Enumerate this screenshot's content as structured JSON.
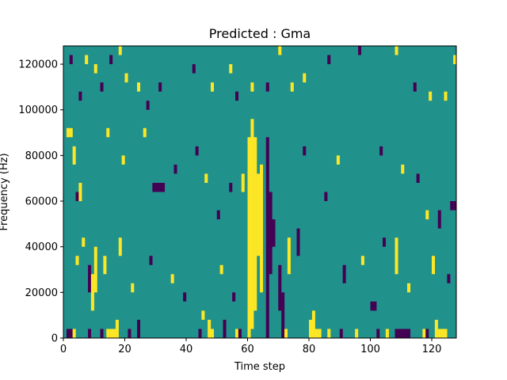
{
  "chart_data": {
    "type": "heatmap",
    "title": "Predicted : Gma",
    "xlabel": "Time step",
    "ylabel": "Frequency (Hz)",
    "xlim": [
      0,
      128
    ],
    "ylim": [
      0,
      128000
    ],
    "x_ticks": [
      0,
      20,
      40,
      60,
      80,
      100,
      120
    ],
    "x_tick_labels": [
      "0",
      "20",
      "40",
      "60",
      "80",
      "100",
      "120"
    ],
    "y_ticks": [
      0,
      20000,
      40000,
      60000,
      80000,
      100000,
      120000
    ],
    "y_tick_labels": [
      "0",
      "20000",
      "40000",
      "60000",
      "80000",
      "100000",
      "120000"
    ],
    "grid": false,
    "legend": "none",
    "colormap": "viridis",
    "value_levels": [
      -1,
      0,
      1
    ],
    "colors": {
      "low": "#440154",
      "mid": "#21918c",
      "high": "#fde725"
    },
    "background_value": 0,
    "band_height_hz": 4000,
    "cells": [
      {
        "x": 60,
        "y0": 0,
        "y1": 88000,
        "value": 1
      },
      {
        "x": 61,
        "y0": 4000,
        "y1": 96000,
        "value": 1
      },
      {
        "x": 62,
        "y0": 12000,
        "y1": 88000,
        "value": 1
      },
      {
        "x": 63,
        "y0": 36000,
        "y1": 72000,
        "value": 1
      },
      {
        "x": 64,
        "y0": 20000,
        "y1": 76000,
        "value": 1
      },
      {
        "x": 66,
        "y0": 0,
        "y1": 88000,
        "value": -1
      },
      {
        "x": 67,
        "y0": 28000,
        "y1": 64000,
        "value": -1
      },
      {
        "x": 68,
        "y0": 40000,
        "y1": 52000,
        "value": -1
      },
      {
        "x": 70,
        "y0": 12000,
        "y1": 32000,
        "value": -1
      },
      {
        "x": 71,
        "y0": 0,
        "y1": 20000,
        "value": -1
      },
      {
        "x": 80,
        "y0": 0,
        "y1": 8000,
        "value": 1
      },
      {
        "x": 81,
        "y0": 0,
        "y1": 12000,
        "value": 1
      },
      {
        "x": 82,
        "y0": 0,
        "y1": 4000,
        "value": 1
      },
      {
        "x": 83,
        "y0": 0,
        "y1": 4000,
        "value": 1
      },
      {
        "x": 86,
        "y0": 0,
        "y1": 4000,
        "value": 1
      },
      {
        "x": 14,
        "y0": 0,
        "y1": 4000,
        "value": 1
      },
      {
        "x": 15,
        "y0": 0,
        "y1": 4000,
        "value": 1
      },
      {
        "x": 16,
        "y0": 0,
        "y1": 4000,
        "value": 1
      },
      {
        "x": 17,
        "y0": 0,
        "y1": 8000,
        "value": 1
      },
      {
        "x": 1,
        "y0": 0,
        "y1": 4000,
        "value": -1
      },
      {
        "x": 2,
        "y0": 0,
        "y1": 4000,
        "value": -1
      },
      {
        "x": 3,
        "y0": 0,
        "y1": 4000,
        "value": 1
      },
      {
        "x": 8,
        "y0": 0,
        "y1": 4000,
        "value": -1
      },
      {
        "x": 12,
        "y0": 0,
        "y1": 4000,
        "value": -1
      },
      {
        "x": 21,
        "y0": 0,
        "y1": 4000,
        "value": -1
      },
      {
        "x": 24,
        "y0": 0,
        "y1": 8000,
        "value": -1
      },
      {
        "x": 44,
        "y0": 0,
        "y1": 4000,
        "value": -1
      },
      {
        "x": 47,
        "y0": 0,
        "y1": 8000,
        "value": 1
      },
      {
        "x": 48,
        "y0": 0,
        "y1": 4000,
        "value": 1
      },
      {
        "x": 52,
        "y0": 0,
        "y1": 8000,
        "value": -1
      },
      {
        "x": 56,
        "y0": 0,
        "y1": 4000,
        "value": 1
      },
      {
        "x": 57,
        "y0": 0,
        "y1": 4000,
        "value": -1
      },
      {
        "x": 72,
        "y0": 0,
        "y1": 4000,
        "value": 1
      },
      {
        "x": 90,
        "y0": 0,
        "y1": 4000,
        "value": -1
      },
      {
        "x": 95,
        "y0": 0,
        "y1": 4000,
        "value": 1
      },
      {
        "x": 102,
        "y0": 0,
        "y1": 4000,
        "value": -1
      },
      {
        "x": 105,
        "y0": 0,
        "y1": 4000,
        "value": 1
      },
      {
        "x": 108,
        "y0": 0,
        "y1": 4000,
        "value": -1
      },
      {
        "x": 109,
        "y0": 0,
        "y1": 4000,
        "value": -1
      },
      {
        "x": 110,
        "y0": 0,
        "y1": 4000,
        "value": -1
      },
      {
        "x": 111,
        "y0": 0,
        "y1": 4000,
        "value": -1
      },
      {
        "x": 112,
        "y0": 0,
        "y1": 4000,
        "value": -1
      },
      {
        "x": 117,
        "y0": 0,
        "y1": 4000,
        "value": 1
      },
      {
        "x": 118,
        "y0": 0,
        "y1": 4000,
        "value": -1
      },
      {
        "x": 121,
        "y0": 0,
        "y1": 8000,
        "value": 1
      },
      {
        "x": 122,
        "y0": 0,
        "y1": 4000,
        "value": 1
      },
      {
        "x": 123,
        "y0": 0,
        "y1": 4000,
        "value": 1
      },
      {
        "x": 124,
        "y0": 0,
        "y1": 4000,
        "value": 1
      },
      {
        "x": 8,
        "y0": 20000,
        "y1": 32000,
        "value": -1
      },
      {
        "x": 9,
        "y0": 12000,
        "y1": 28000,
        "value": 1
      },
      {
        "x": 10,
        "y0": 20000,
        "y1": 40000,
        "value": 1
      },
      {
        "x": 13,
        "y0": 28000,
        "y1": 36000,
        "value": 1
      },
      {
        "x": 4,
        "y0": 60000,
        "y1": 64000,
        "value": -1
      },
      {
        "x": 29,
        "y0": 64000,
        "y1": 68000,
        "value": -1
      },
      {
        "x": 30,
        "y0": 64000,
        "y1": 68000,
        "value": -1
      },
      {
        "x": 31,
        "y0": 64000,
        "y1": 68000,
        "value": -1
      },
      {
        "x": 32,
        "y0": 64000,
        "y1": 68000,
        "value": -1
      },
      {
        "x": 1,
        "y0": 88000,
        "y1": 92000,
        "value": 1
      },
      {
        "x": 2,
        "y0": 88000,
        "y1": 92000,
        "value": 1
      },
      {
        "x": 73,
        "y0": 28000,
        "y1": 44000,
        "value": 1
      },
      {
        "x": 58,
        "y0": 64000,
        "y1": 72000,
        "value": 1
      },
      {
        "x": 76,
        "y0": 36000,
        "y1": 48000,
        "value": -1
      },
      {
        "x": 100,
        "y0": 12000,
        "y1": 16000,
        "value": -1
      },
      {
        "x": 101,
        "y0": 12000,
        "y1": 16000,
        "value": -1
      },
      {
        "x": 108,
        "y0": 28000,
        "y1": 44000,
        "value": 1
      },
      {
        "x": 126,
        "y0": 56000,
        "y1": 60000,
        "value": -1
      },
      {
        "x": 127,
        "y0": 56000,
        "y1": 60000,
        "value": -1
      },
      {
        "x": 2,
        "y0": 120000,
        "y1": 124000,
        "value": -1
      },
      {
        "x": 5,
        "y0": 104000,
        "y1": 108000,
        "value": -1
      },
      {
        "x": 7,
        "y0": 120000,
        "y1": 124000,
        "value": 1
      },
      {
        "x": 10,
        "y0": 116000,
        "y1": 120000,
        "value": 1
      },
      {
        "x": 15,
        "y0": 120000,
        "y1": 124000,
        "value": -1
      },
      {
        "x": 18,
        "y0": 124000,
        "y1": 128000,
        "value": 1
      },
      {
        "x": 12,
        "y0": 108000,
        "y1": 112000,
        "value": -1
      },
      {
        "x": 20,
        "y0": 112000,
        "y1": 116000,
        "value": 1
      },
      {
        "x": 24,
        "y0": 108000,
        "y1": 112000,
        "value": 1
      },
      {
        "x": 27,
        "y0": 100000,
        "y1": 104000,
        "value": -1
      },
      {
        "x": 31,
        "y0": 108000,
        "y1": 112000,
        "value": -1
      },
      {
        "x": 42,
        "y0": 116000,
        "y1": 120000,
        "value": -1
      },
      {
        "x": 48,
        "y0": 108000,
        "y1": 112000,
        "value": 1
      },
      {
        "x": 54,
        "y0": 116000,
        "y1": 120000,
        "value": 1
      },
      {
        "x": 56,
        "y0": 104000,
        "y1": 108000,
        "value": -1
      },
      {
        "x": 61,
        "y0": 108000,
        "y1": 112000,
        "value": 1
      },
      {
        "x": 66,
        "y0": 108000,
        "y1": 112000,
        "value": -1
      },
      {
        "x": 70,
        "y0": 124000,
        "y1": 128000,
        "value": 1
      },
      {
        "x": 74,
        "y0": 108000,
        "y1": 112000,
        "value": 1
      },
      {
        "x": 78,
        "y0": 112000,
        "y1": 116000,
        "value": 1
      },
      {
        "x": 86,
        "y0": 120000,
        "y1": 124000,
        "value": -1
      },
      {
        "x": 96,
        "y0": 124000,
        "y1": 128000,
        "value": -1
      },
      {
        "x": 108,
        "y0": 124000,
        "y1": 128000,
        "value": 1
      },
      {
        "x": 114,
        "y0": 108000,
        "y1": 112000,
        "value": -1
      },
      {
        "x": 119,
        "y0": 104000,
        "y1": 108000,
        "value": 1
      },
      {
        "x": 124,
        "y0": 104000,
        "y1": 108000,
        "value": 1
      },
      {
        "x": 127,
        "y0": 120000,
        "y1": 124000,
        "value": 1
      },
      {
        "x": 3,
        "y0": 76000,
        "y1": 84000,
        "value": 1
      },
      {
        "x": 5,
        "y0": 60000,
        "y1": 68000,
        "value": 1
      },
      {
        "x": 14,
        "y0": 88000,
        "y1": 92000,
        "value": 1
      },
      {
        "x": 19,
        "y0": 76000,
        "y1": 80000,
        "value": 1
      },
      {
        "x": 26,
        "y0": 88000,
        "y1": 92000,
        "value": 1
      },
      {
        "x": 36,
        "y0": 72000,
        "y1": 76000,
        "value": -1
      },
      {
        "x": 43,
        "y0": 80000,
        "y1": 84000,
        "value": -1
      },
      {
        "x": 46,
        "y0": 68000,
        "y1": 72000,
        "value": 1
      },
      {
        "x": 50,
        "y0": 52000,
        "y1": 56000,
        "value": -1
      },
      {
        "x": 54,
        "y0": 64000,
        "y1": 68000,
        "value": -1
      },
      {
        "x": 78,
        "y0": 80000,
        "y1": 84000,
        "value": -1
      },
      {
        "x": 85,
        "y0": 60000,
        "y1": 64000,
        "value": -1
      },
      {
        "x": 89,
        "y0": 76000,
        "y1": 80000,
        "value": 1
      },
      {
        "x": 103,
        "y0": 80000,
        "y1": 84000,
        "value": -1
      },
      {
        "x": 110,
        "y0": 72000,
        "y1": 76000,
        "value": 1
      },
      {
        "x": 115,
        "y0": 68000,
        "y1": 72000,
        "value": -1
      },
      {
        "x": 118,
        "y0": 52000,
        "y1": 56000,
        "value": 1
      },
      {
        "x": 122,
        "y0": 48000,
        "y1": 56000,
        "value": -1
      },
      {
        "x": 4,
        "y0": 32000,
        "y1": 36000,
        "value": 1
      },
      {
        "x": 6,
        "y0": 40000,
        "y1": 44000,
        "value": 1
      },
      {
        "x": 18,
        "y0": 36000,
        "y1": 44000,
        "value": 1
      },
      {
        "x": 22,
        "y0": 20000,
        "y1": 24000,
        "value": 1
      },
      {
        "x": 28,
        "y0": 32000,
        "y1": 36000,
        "value": -1
      },
      {
        "x": 35,
        "y0": 24000,
        "y1": 28000,
        "value": 1
      },
      {
        "x": 39,
        "y0": 16000,
        "y1": 20000,
        "value": -1
      },
      {
        "x": 45,
        "y0": 8000,
        "y1": 12000,
        "value": 1
      },
      {
        "x": 51,
        "y0": 28000,
        "y1": 32000,
        "value": 1
      },
      {
        "x": 55,
        "y0": 16000,
        "y1": 20000,
        "value": -1
      },
      {
        "x": 91,
        "y0": 24000,
        "y1": 32000,
        "value": -1
      },
      {
        "x": 97,
        "y0": 32000,
        "y1": 36000,
        "value": 1
      },
      {
        "x": 104,
        "y0": 40000,
        "y1": 44000,
        "value": -1
      },
      {
        "x": 112,
        "y0": 20000,
        "y1": 24000,
        "value": 1
      },
      {
        "x": 120,
        "y0": 28000,
        "y1": 36000,
        "value": 1
      },
      {
        "x": 125,
        "y0": 24000,
        "y1": 28000,
        "value": -1
      }
    ]
  }
}
